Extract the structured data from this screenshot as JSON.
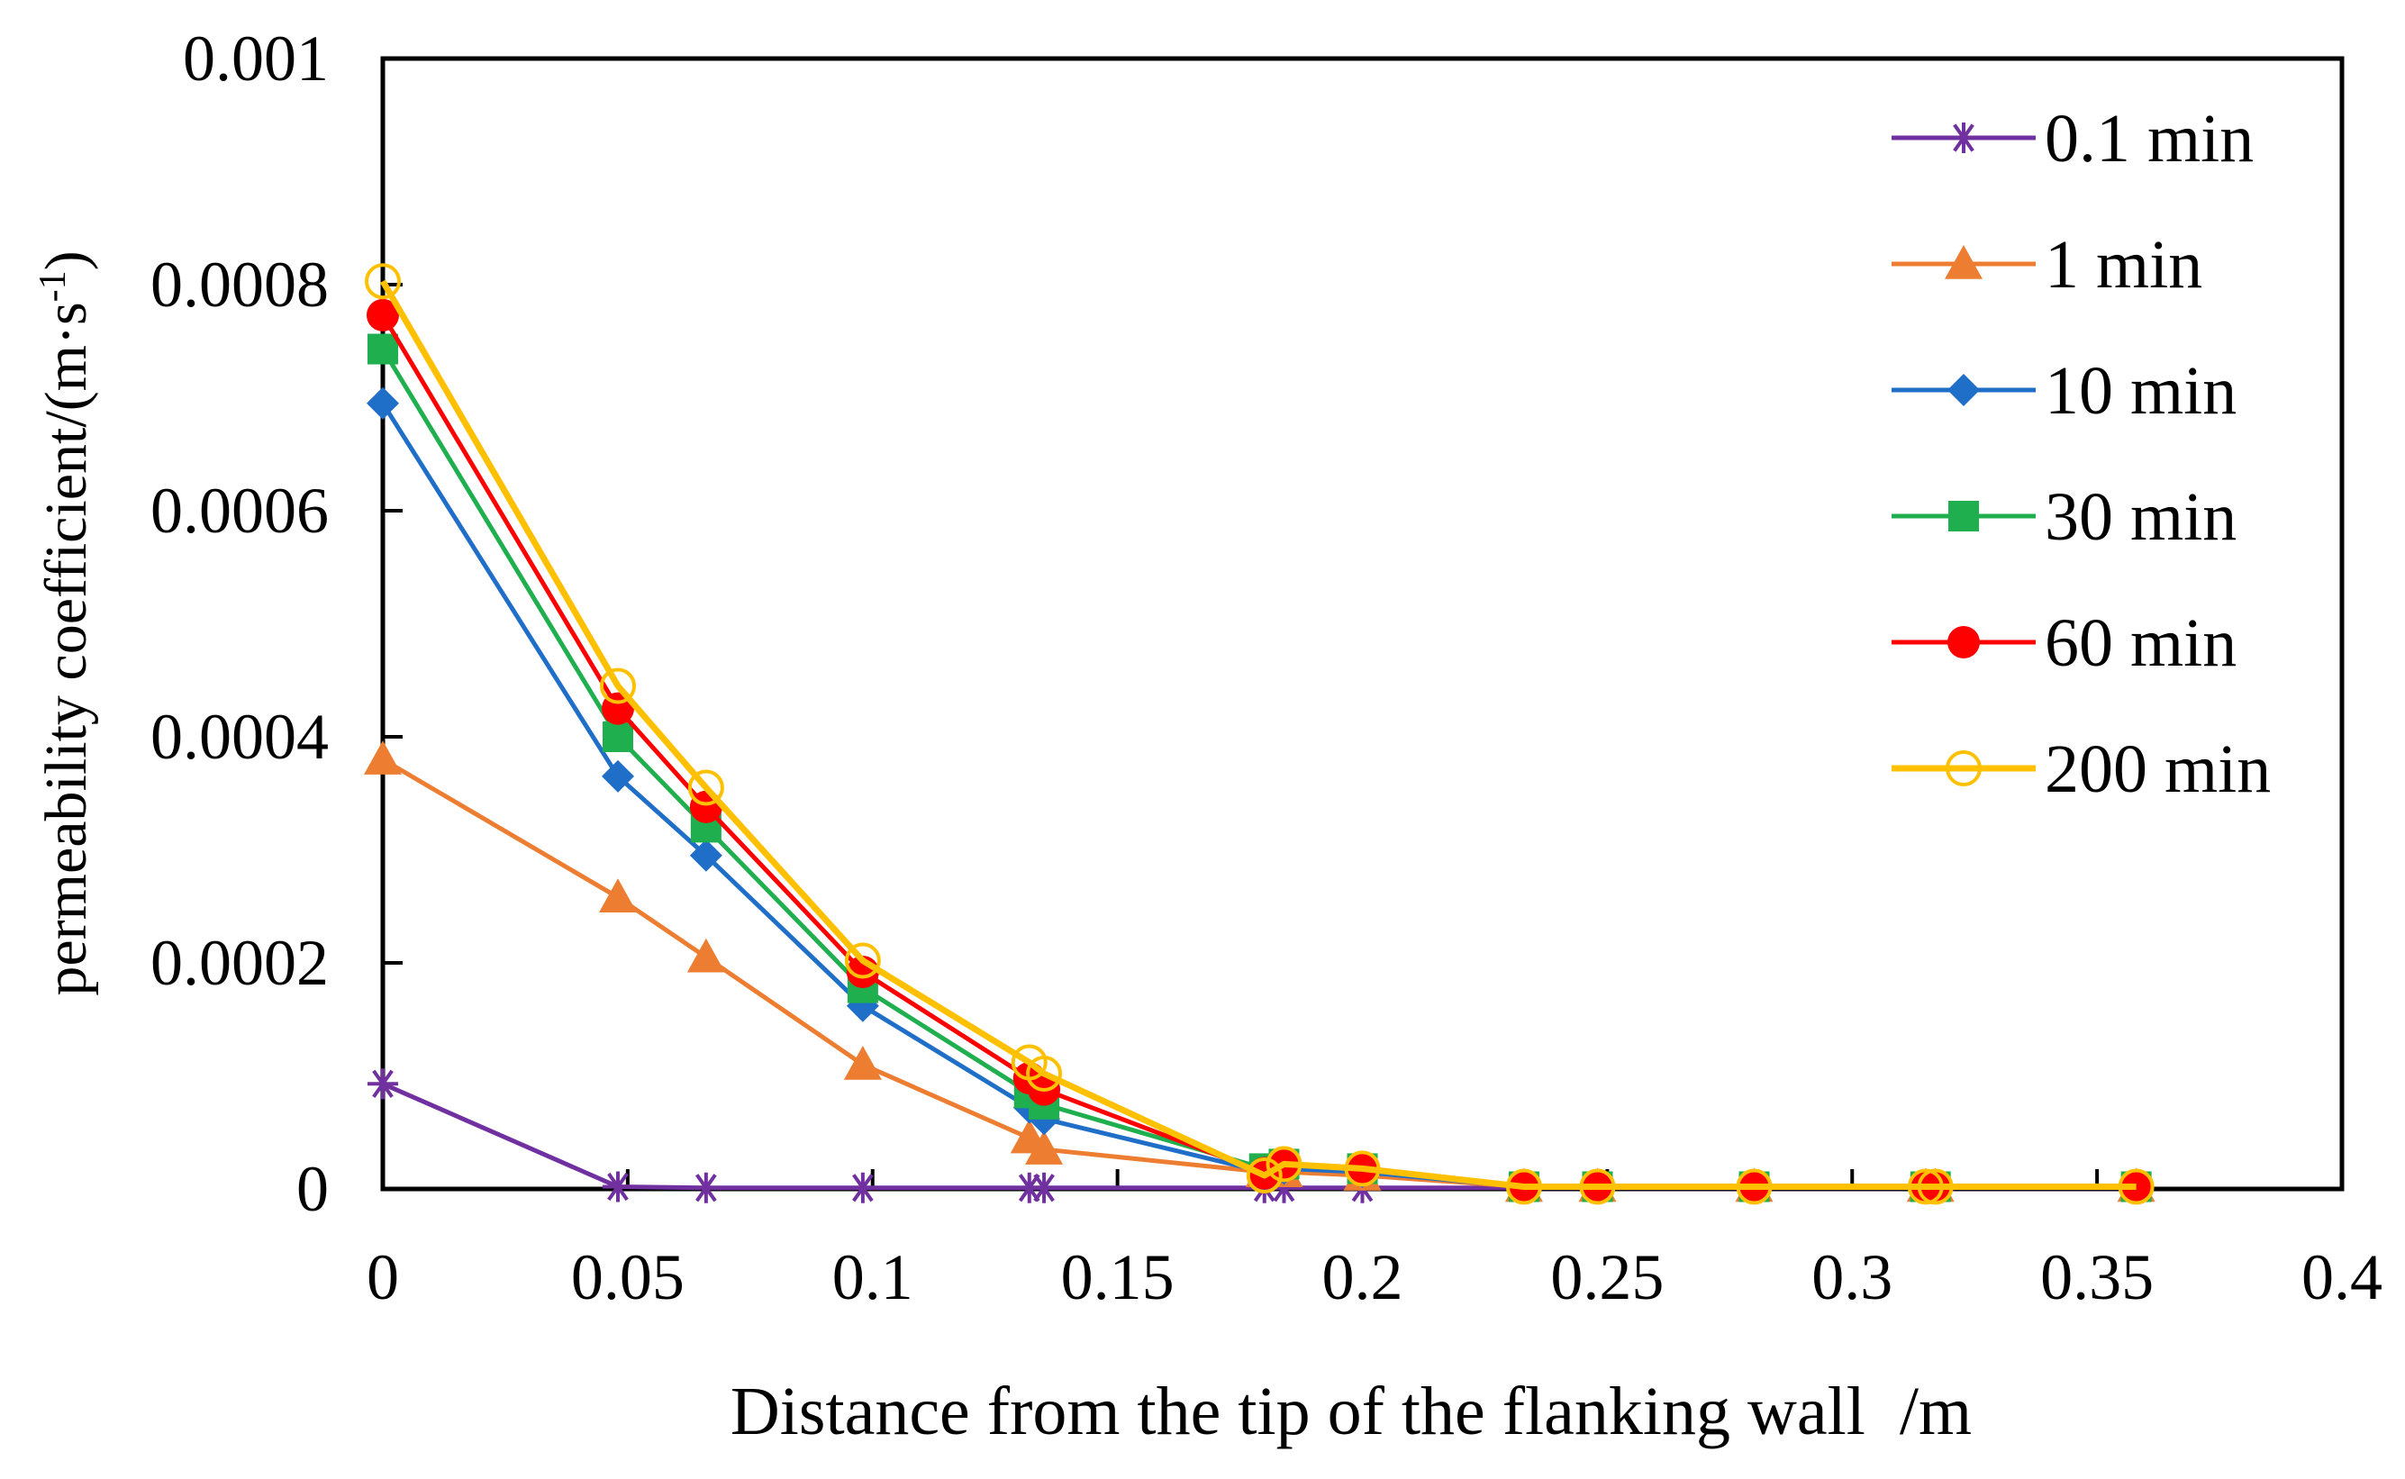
{
  "chart_data": {
    "type": "line",
    "title": "",
    "xlabel": "Distance from the tip of the flanking wall  /m",
    "ylabel": "permeability coefficient/(m·s",
    "ylabel_sup": "-1",
    "ylabel_close": ")",
    "xlim": [
      0,
      0.4
    ],
    "ylim": [
      0,
      0.001
    ],
    "xticks": [
      0,
      0.05,
      0.1,
      0.15,
      0.2,
      0.25,
      0.3,
      0.35,
      0.4
    ],
    "xtick_labels": [
      "0",
      "0.05",
      "0.1",
      "0.15",
      "0.2",
      "0.25",
      "0.3",
      "0.35",
      "0.4"
    ],
    "yticks": [
      0,
      0.0002,
      0.0004,
      0.0006,
      0.0008,
      0.001
    ],
    "ytick_labels": [
      "0",
      "0.0002",
      "0.0004",
      "0.0006",
      "0.0008",
      "0.001"
    ],
    "grid": false,
    "legend_position": "top-right",
    "x": [
      0,
      0.048,
      0.066,
      0.098,
      0.132,
      0.135,
      0.18,
      0.184,
      0.2,
      0.233,
      0.248,
      0.28,
      0.315,
      0.317,
      0.358
    ],
    "series": [
      {
        "name": "0.1 min",
        "color": "#7030A0",
        "marker": "asterisk",
        "values": [
          9.3e-05,
          2e-06,
          1e-06,
          1e-06,
          1e-06,
          1e-06,
          1e-06,
          1e-06,
          1e-06,
          1e-06,
          1e-06,
          1e-06,
          1e-06,
          1e-06,
          1e-06
        ]
      },
      {
        "name": "1 min",
        "color": "#ED7D31",
        "marker": "triangle",
        "values": [
          0.00038,
          0.000258,
          0.000205,
          0.00011,
          4.5e-05,
          3.5e-05,
          1.5e-05,
          1.5e-05,
          1.2e-05,
          2e-06,
          2e-06,
          2e-06,
          2e-06,
          2e-06,
          2e-06
        ]
      },
      {
        "name": "10 min",
        "color": "#1F6FC8",
        "marker": "diamond",
        "values": [
          0.000695,
          0.000365,
          0.000295,
          0.000162,
          7.2e-05,
          6.2e-05,
          1.5e-05,
          1.8e-05,
          1.5e-05,
          2e-06,
          2e-06,
          2e-06,
          2e-06,
          2e-06,
          2e-06
        ]
      },
      {
        "name": "30 min",
        "color": "#1FAF4E",
        "marker": "square",
        "values": [
          0.000743,
          0.0004,
          0.00032,
          0.000178,
          8.5e-05,
          7.5e-05,
          1.8e-05,
          2.2e-05,
          1.8e-05,
          2e-06,
          2e-06,
          2e-06,
          2e-06,
          2e-06,
          2e-06
        ]
      },
      {
        "name": "60 min",
        "color": "#FF0000",
        "marker": "circle",
        "values": [
          0.000773,
          0.000425,
          0.000338,
          0.000192,
          9.8e-05,
          8.8e-05,
          1.4e-05,
          2.2e-05,
          1.8e-05,
          2e-06,
          2e-06,
          2e-06,
          2e-06,
          2e-06,
          2e-06
        ]
      },
      {
        "name": "200 min",
        "color": "#FFC000",
        "marker": "open-circle",
        "values": [
          0.000803,
          0.000445,
          0.000355,
          0.000202,
          0.000112,
          0.000102,
          1.2e-05,
          2.2e-05,
          1.8e-05,
          2e-06,
          2e-06,
          2e-06,
          2e-06,
          2e-06,
          2e-06
        ]
      }
    ]
  }
}
